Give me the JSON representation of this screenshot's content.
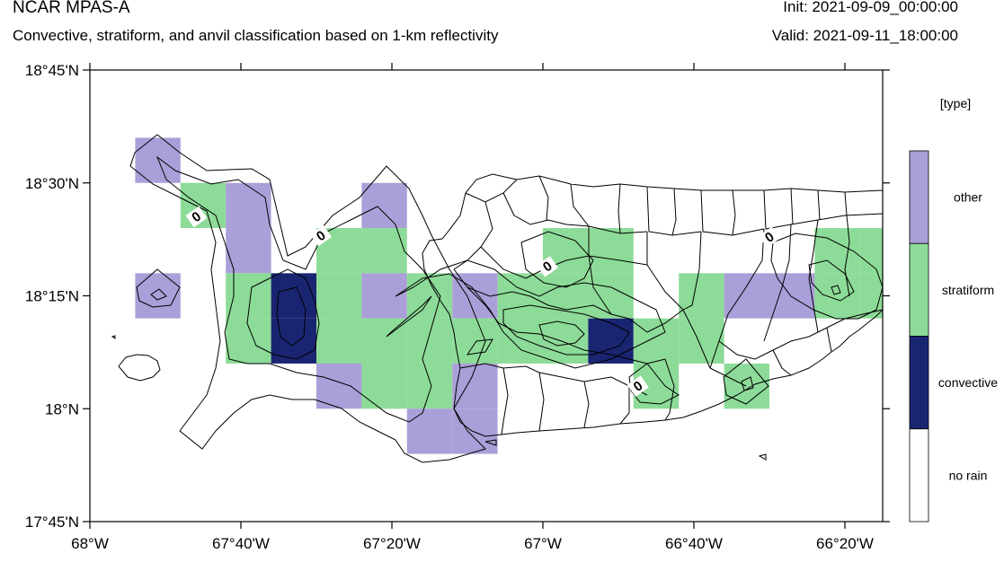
{
  "header": {
    "model": "NCAR MPAS-A",
    "subtitle": "Convective, stratiform, and anvil classification based on 1-km reflectivity",
    "init": "Init: 2021-09-09_00:00:00",
    "valid": "Valid: 2021-09-11_18:00:00"
  },
  "axes": {
    "lon_ticks": [
      {
        "value": -68.0,
        "label": "68°W"
      },
      {
        "value": -67.6667,
        "label": "67°40'W"
      },
      {
        "value": -67.3333,
        "label": "67°20'W"
      },
      {
        "value": -67.0,
        "label": "67°W"
      },
      {
        "value": -66.6667,
        "label": "66°40'W"
      },
      {
        "value": -66.3333,
        "label": "66°20'W"
      }
    ],
    "lat_ticks": [
      {
        "value": 18.75,
        "label": "18°45'N"
      },
      {
        "value": 18.5,
        "label": "18°30'N"
      },
      {
        "value": 18.25,
        "label": "18°15'N"
      },
      {
        "value": 18.0,
        "label": "18°N"
      },
      {
        "value": 17.75,
        "label": "17°45'N"
      }
    ],
    "lon_range": [
      -68.0,
      -66.25
    ],
    "lat_range": [
      17.75,
      18.75
    ]
  },
  "legend": {
    "title": "[type]",
    "entries": [
      {
        "label": "other",
        "color": "#aa9fd8"
      },
      {
        "label": "stratiform",
        "color": "#8ddb98"
      },
      {
        "label": "convective",
        "color": "#1a2572"
      },
      {
        "label": "no rain",
        "color": "#ffffff"
      }
    ]
  },
  "contour_labels": [
    {
      "text": "0",
      "lon": -67.765,
      "lat": 18.425
    },
    {
      "text": "0",
      "lon": -67.49,
      "lat": 18.383
    },
    {
      "text": "0",
      "lon": -66.99,
      "lat": 18.315
    },
    {
      "text": "0",
      "lon": -66.79,
      "lat": 18.05
    },
    {
      "text": "0",
      "lon": -66.5,
      "lat": 18.38
    }
  ],
  "chart_data": {
    "type": "heatmap",
    "categories": [
      "no rain",
      "convective",
      "stratiform",
      "other"
    ],
    "cell_size_deg": 0.1,
    "cells": [
      {
        "lon": -67.85,
        "lat": 18.55,
        "type": "other"
      },
      {
        "lon": -67.75,
        "lat": 18.45,
        "type": "stratiform"
      },
      {
        "lon": -67.65,
        "lat": 18.45,
        "type": "other"
      },
      {
        "lon": -67.65,
        "lat": 18.35,
        "type": "other"
      },
      {
        "lon": -67.85,
        "lat": 18.25,
        "type": "other"
      },
      {
        "lon": -67.35,
        "lat": 18.45,
        "type": "other"
      },
      {
        "lon": -67.45,
        "lat": 18.35,
        "type": "stratiform"
      },
      {
        "lon": -67.35,
        "lat": 18.35,
        "type": "stratiform"
      },
      {
        "lon": -67.65,
        "lat": 18.25,
        "type": "stratiform"
      },
      {
        "lon": -67.55,
        "lat": 18.25,
        "type": "convective"
      },
      {
        "lon": -67.45,
        "lat": 18.25,
        "type": "stratiform"
      },
      {
        "lon": -67.35,
        "lat": 18.25,
        "type": "other"
      },
      {
        "lon": -67.25,
        "lat": 18.25,
        "type": "stratiform"
      },
      {
        "lon": -67.15,
        "lat": 18.25,
        "type": "other"
      },
      {
        "lon": -67.05,
        "lat": 18.25,
        "type": "stratiform"
      },
      {
        "lon": -66.95,
        "lat": 18.35,
        "type": "stratiform"
      },
      {
        "lon": -66.95,
        "lat": 18.25,
        "type": "stratiform"
      },
      {
        "lon": -67.65,
        "lat": 18.15,
        "type": "stratiform"
      },
      {
        "lon": -67.55,
        "lat": 18.15,
        "type": "convective"
      },
      {
        "lon": -67.45,
        "lat": 18.15,
        "type": "stratiform"
      },
      {
        "lon": -67.35,
        "lat": 18.15,
        "type": "stratiform"
      },
      {
        "lon": -67.25,
        "lat": 18.15,
        "type": "stratiform"
      },
      {
        "lon": -67.15,
        "lat": 18.15,
        "type": "stratiform"
      },
      {
        "lon": -67.05,
        "lat": 18.15,
        "type": "stratiform"
      },
      {
        "lon": -66.95,
        "lat": 18.15,
        "type": "stratiform"
      },
      {
        "lon": -66.85,
        "lat": 18.15,
        "type": "convective"
      },
      {
        "lon": -66.75,
        "lat": 18.15,
        "type": "stratiform"
      },
      {
        "lon": -66.65,
        "lat": 18.15,
        "type": "stratiform"
      },
      {
        "lon": -67.45,
        "lat": 18.05,
        "type": "other"
      },
      {
        "lon": -67.35,
        "lat": 18.05,
        "type": "stratiform"
      },
      {
        "lon": -67.25,
        "lat": 18.05,
        "type": "stratiform"
      },
      {
        "lon": -67.15,
        "lat": 18.05,
        "type": "other"
      },
      {
        "lon": -66.75,
        "lat": 18.05,
        "type": "stratiform"
      },
      {
        "lon": -66.55,
        "lat": 18.05,
        "type": "stratiform"
      },
      {
        "lon": -67.25,
        "lat": 17.95,
        "type": "other"
      },
      {
        "lon": -67.15,
        "lat": 17.95,
        "type": "other"
      },
      {
        "lon": -66.85,
        "lat": 18.35,
        "type": "stratiform"
      },
      {
        "lon": -66.85,
        "lat": 18.25,
        "type": "stratiform"
      },
      {
        "lon": -66.65,
        "lat": 18.25,
        "type": "stratiform"
      },
      {
        "lon": -66.55,
        "lat": 18.25,
        "type": "other"
      },
      {
        "lon": -66.45,
        "lat": 18.25,
        "type": "other"
      },
      {
        "lon": -66.35,
        "lat": 18.25,
        "type": "stratiform"
      },
      {
        "lon": -66.25,
        "lat": 18.25,
        "type": "stratiform"
      },
      {
        "lon": -66.15,
        "lat": 18.25,
        "type": "stratiform"
      },
      {
        "lon": -66.35,
        "lat": 18.35,
        "type": "stratiform"
      },
      {
        "lon": -66.25,
        "lat": 18.35,
        "type": "stratiform"
      }
    ]
  }
}
